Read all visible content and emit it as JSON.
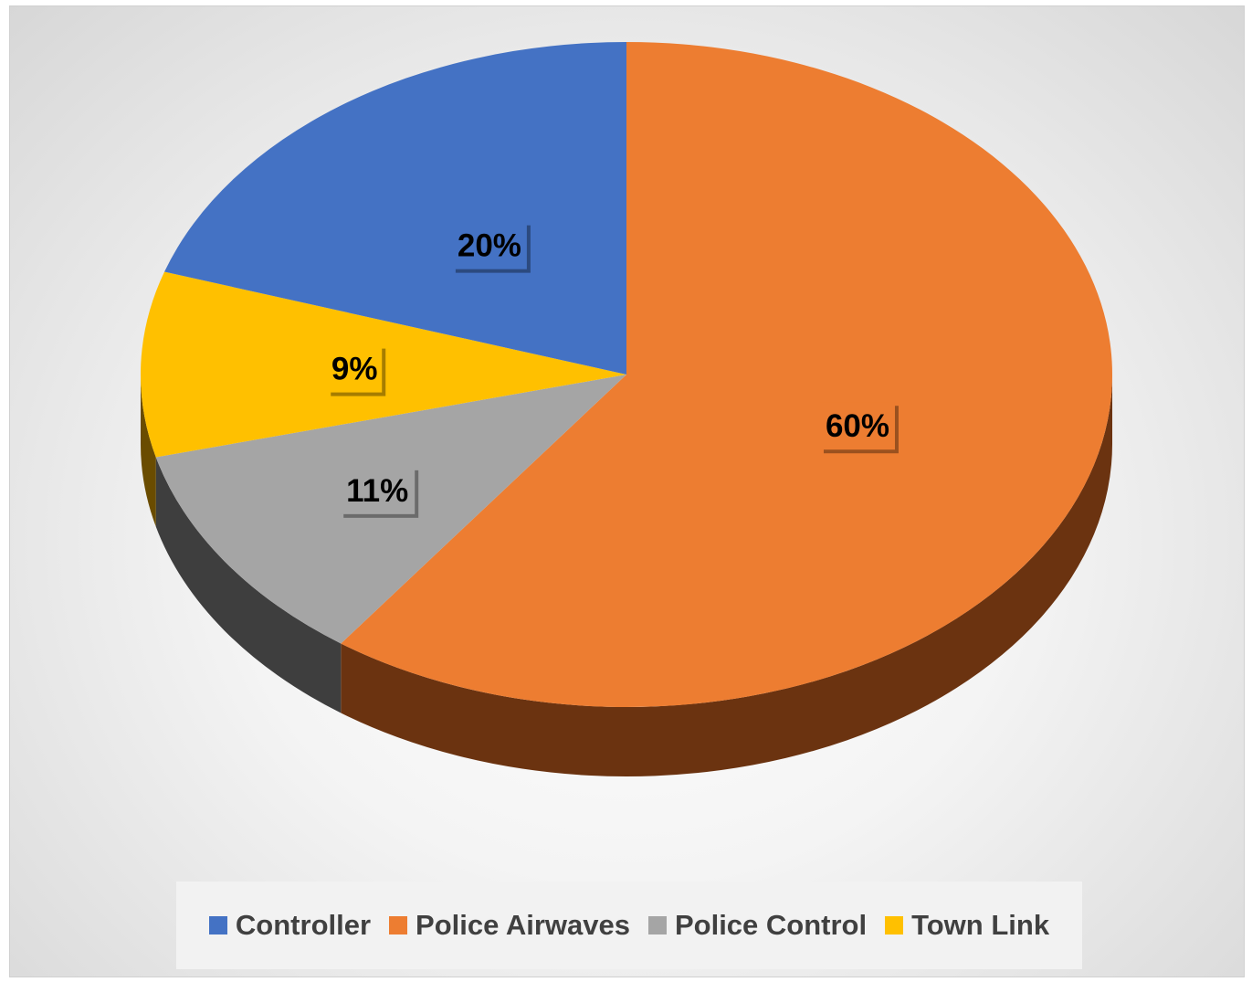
{
  "chart_data": {
    "type": "pie",
    "title": "",
    "categories": [
      "Controller",
      "Police Airwaves",
      "Police Control",
      "Town Link"
    ],
    "values": [
      20,
      60,
      11,
      9
    ],
    "data_labels": [
      "20%",
      "60%",
      "11%",
      "9%"
    ],
    "colors": [
      "#4472C4",
      "#ED7D31",
      "#A5A5A5",
      "#FFC000"
    ],
    "side_colors": [
      "#233C69",
      "#6B3310",
      "#3E3E3E",
      "#6A4C00"
    ],
    "style": "3d-pie",
    "legend_position": "bottom",
    "legend": [
      {
        "label": "Controller",
        "color": "#4472C4"
      },
      {
        "label": "Police Airwaves",
        "color": "#ED7D31"
      },
      {
        "label": "Police Control",
        "color": "#A5A5A5"
      },
      {
        "label": "Town Link",
        "color": "#FFC000"
      }
    ]
  }
}
